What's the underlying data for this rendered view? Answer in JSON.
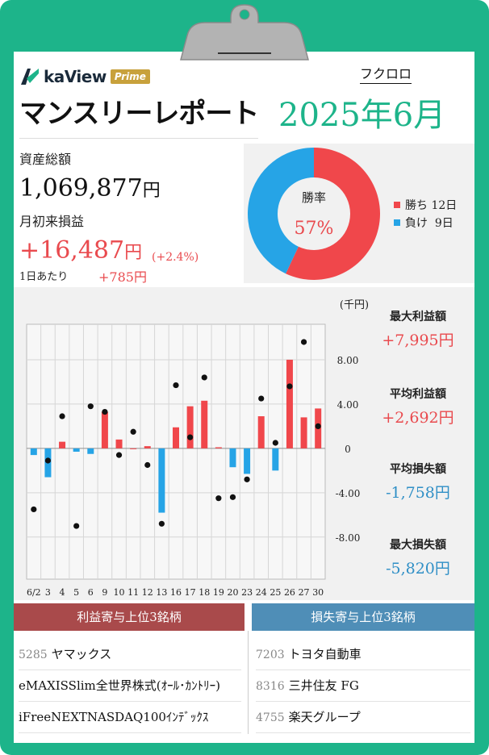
{
  "brand": {
    "name": "kaView",
    "badge": "Prime"
  },
  "report": {
    "title": "マンスリーレポート",
    "month": "2025年6月",
    "user": "フクロロ"
  },
  "assets": {
    "label": "資産総額",
    "value": "1,069,877",
    "unit": "円"
  },
  "monthly_pl": {
    "label": "月初来損益",
    "value": "+16,487",
    "unit": "円",
    "pct": "(+2.4%)",
    "per_day_label": "1日あたり",
    "per_day_value": "+785円"
  },
  "winrate": {
    "label": "勝率",
    "value": "57%",
    "win_label": "勝ち 12日",
    "loss_label": "負け  9日",
    "win_fraction": 0.57,
    "win_color": "#f0474b",
    "loss_color": "#26a4e6"
  },
  "stats": [
    {
      "label": "最大利益額",
      "value": "+7,995円",
      "tone": "pos"
    },
    {
      "label": "平均利益額",
      "value": "+2,692円",
      "tone": "pos"
    },
    {
      "label": "平均損失額",
      "value": "-1,758円",
      "tone": "neg"
    },
    {
      "label": "最大損失額",
      "value": "-5,820円",
      "tone": "neg"
    }
  ],
  "chart_data": {
    "type": "bar",
    "unit_label": "(千円)",
    "categories": [
      "6/2",
      "3",
      "4",
      "5",
      "6",
      "9",
      "10",
      "11",
      "12",
      "13",
      "16",
      "17",
      "18",
      "19",
      "20",
      "23",
      "24",
      "25",
      "26",
      "27",
      "30"
    ],
    "series": [
      {
        "values": [
          -0.6,
          -2.6,
          0.6,
          -0.3,
          -0.5,
          3.3,
          0.8,
          0.0,
          0.2,
          -5.8,
          1.9,
          3.8,
          4.3,
          0.1,
          -1.7,
          -2.3,
          2.9,
          -2.0,
          8.0,
          2.8,
          3.6
        ]
      },
      {
        "type": "scatter",
        "values": [
          -5.5,
          -1.1,
          2.9,
          -7.0,
          3.8,
          3.3,
          -0.6,
          1.5,
          -1.5,
          -6.8,
          5.7,
          1.0,
          6.4,
          -4.5,
          -4.4,
          -2.8,
          4.5,
          0.5,
          5.6,
          9.6,
          2.0
        ]
      }
    ],
    "yticks": [
      "8.00",
      "4.00",
      "0",
      "-4.00",
      "-8.00"
    ],
    "ylim": [
      -11.8,
      11.2
    ],
    "colors": {
      "pos": "#f0474b",
      "neg": "#26a4e6",
      "dot": "#111111"
    }
  },
  "profit_top": {
    "header": "利益寄与上位3銘柄",
    "items": [
      {
        "code": "5285",
        "name": "ヤマックス"
      },
      {
        "code": "",
        "name": "eMAXISSlim全世界株式(ｵｰﾙ･ｶﾝﾄﾘｰ)"
      },
      {
        "code": "",
        "name": "iFreeNEXTNASDAQ100ｲﾝﾃﾞｯｸｽ"
      }
    ]
  },
  "loss_top": {
    "header": "損失寄与上位3銘柄",
    "items": [
      {
        "code": "7203",
        "name": "トヨタ自動車"
      },
      {
        "code": "8316",
        "name": "三井住友 FG"
      },
      {
        "code": "4755",
        "name": "楽天グループ"
      }
    ]
  }
}
